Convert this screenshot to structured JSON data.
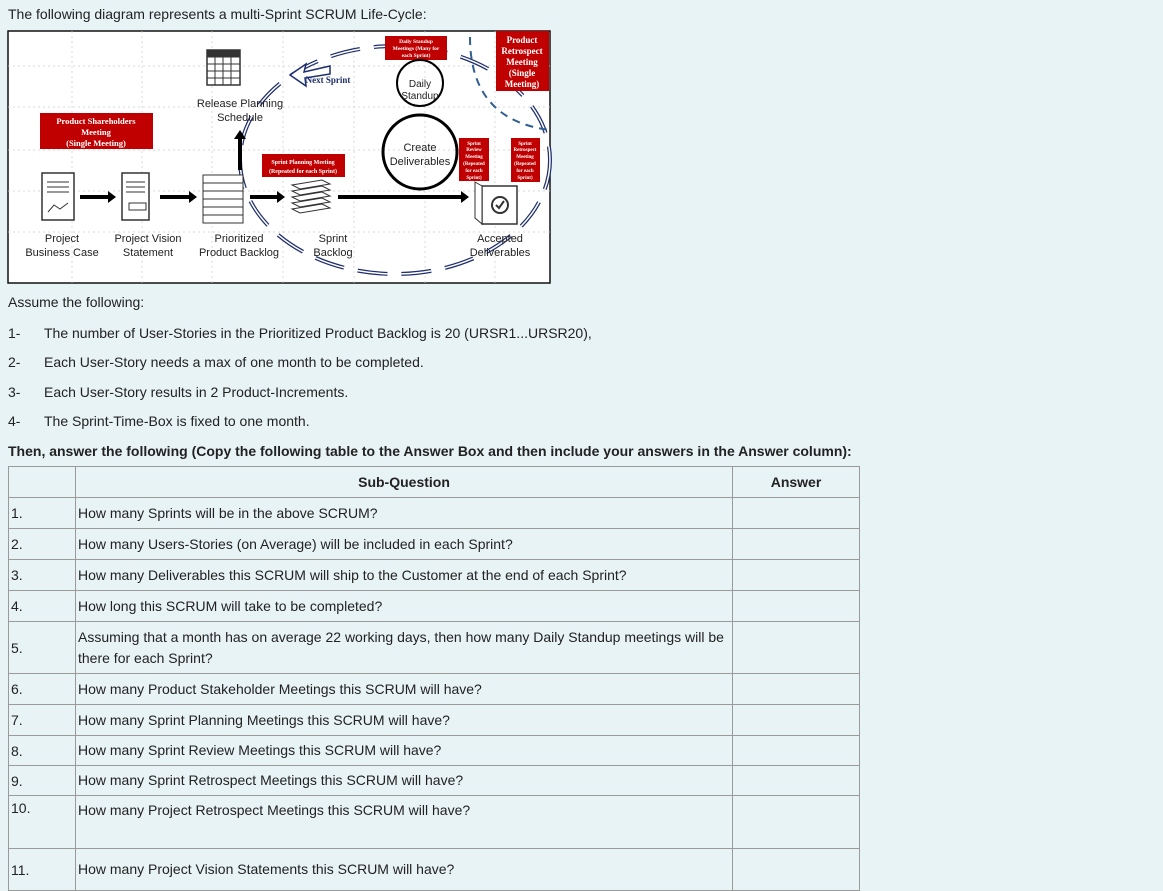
{
  "intro": "The following diagram represents a multi-Sprint SCRUM Life-Cycle:",
  "diagram": {
    "shareholders_meeting": [
      "Product Shareholders",
      "Meeting",
      "(Single Meeting)"
    ],
    "release_planning": [
      "Release Planning",
      "Schedule"
    ],
    "next_sprint": "Next Sprint",
    "daily_standup_box": [
      "Daily Standup",
      "Meetings (Many for",
      "each Sprint)"
    ],
    "product_retrospect": [
      "Product",
      "Retrospect",
      "Meeting",
      "(Single",
      "Meeting)"
    ],
    "daily_standup": [
      "Daily",
      "Standup"
    ],
    "create_deliverables": [
      "Create",
      "Deliverables"
    ],
    "sprint_planning": [
      "Sprint Planning Meeting",
      "(Repeated for each Sprint)"
    ],
    "sprint_review": [
      "Sprint",
      "Review",
      "Meeting",
      "(Repeated",
      "for each",
      "Sprint)"
    ],
    "sprint_retrospect": [
      "Sprint",
      "Retrospect",
      "Meeting",
      "(Repeated",
      "for each",
      "Sprint)"
    ],
    "labels": {
      "business_case": [
        "Project",
        "Business Case"
      ],
      "vision": [
        "Project Vision",
        "Statement"
      ],
      "backlog": [
        "Prioritized",
        "Product Backlog"
      ],
      "sprint_backlog": [
        "Sprint",
        "Backlog"
      ],
      "accepted": [
        "Accepted",
        "Deliverables"
      ]
    },
    "colors": {
      "red_box": "#c00000",
      "cycle_arrow": "#1f2f6e",
      "dashed": "#2f5f8f"
    }
  },
  "assume": "Assume the following:",
  "assumptions": [
    {
      "n": "1-",
      "text": "The number of User-Stories in the Prioritized Product Backlog is 20 (URSR1...URSR20),"
    },
    {
      "n": "2-",
      "text": "Each User-Story needs a max of one month to be completed."
    },
    {
      "n": "3-",
      "text": "Each User-Story results in 2 Product-Increments."
    },
    {
      "n": "4-",
      "text": "The Sprint-Time-Box is fixed to one month."
    }
  ],
  "instruction": "Then, answer the following (Copy the following table to the Answer Box and then include your answers in the Answer column):",
  "table": {
    "headers": [
      "",
      "Sub-Question",
      "Answer"
    ],
    "rows": [
      {
        "n": "1.",
        "q": "How many Sprints will be in the above SCRUM?",
        "a": ""
      },
      {
        "n": "2.",
        "q": "How many Users-Stories (on Average) will be included in each Sprint?",
        "a": ""
      },
      {
        "n": "3.",
        "q": "How many Deliverables this SCRUM will ship to the Customer at the end of each Sprint?",
        "a": ""
      },
      {
        "n": "4.",
        "q": "How long this SCRUM will take to be completed?",
        "a": ""
      },
      {
        "n": "5.",
        "q": "Assuming that a month has on average 22 working days, then how many Daily Standup meetings will be there for each Sprint?",
        "a": ""
      },
      {
        "n": "6.",
        "q": "How many Product Stakeholder Meetings this SCRUM will have?",
        "a": ""
      },
      {
        "n": "7.",
        "q": "How many Sprint Planning Meetings this SCRUM will have?",
        "a": ""
      },
      {
        "n": "8.",
        "q": "How many Sprint Review Meetings this SCRUM will have?",
        "a": ""
      },
      {
        "n": "9.",
        "q": "How many Sprint Retrospect Meetings this SCRUM will have?",
        "a": ""
      },
      {
        "n": "10.",
        "q": "How many Project Retrospect Meetings this SCRUM will have?",
        "a": ""
      },
      {
        "n": "11.",
        "q": "How many Project Vision Statements this SCRUM will have?",
        "a": ""
      }
    ]
  }
}
